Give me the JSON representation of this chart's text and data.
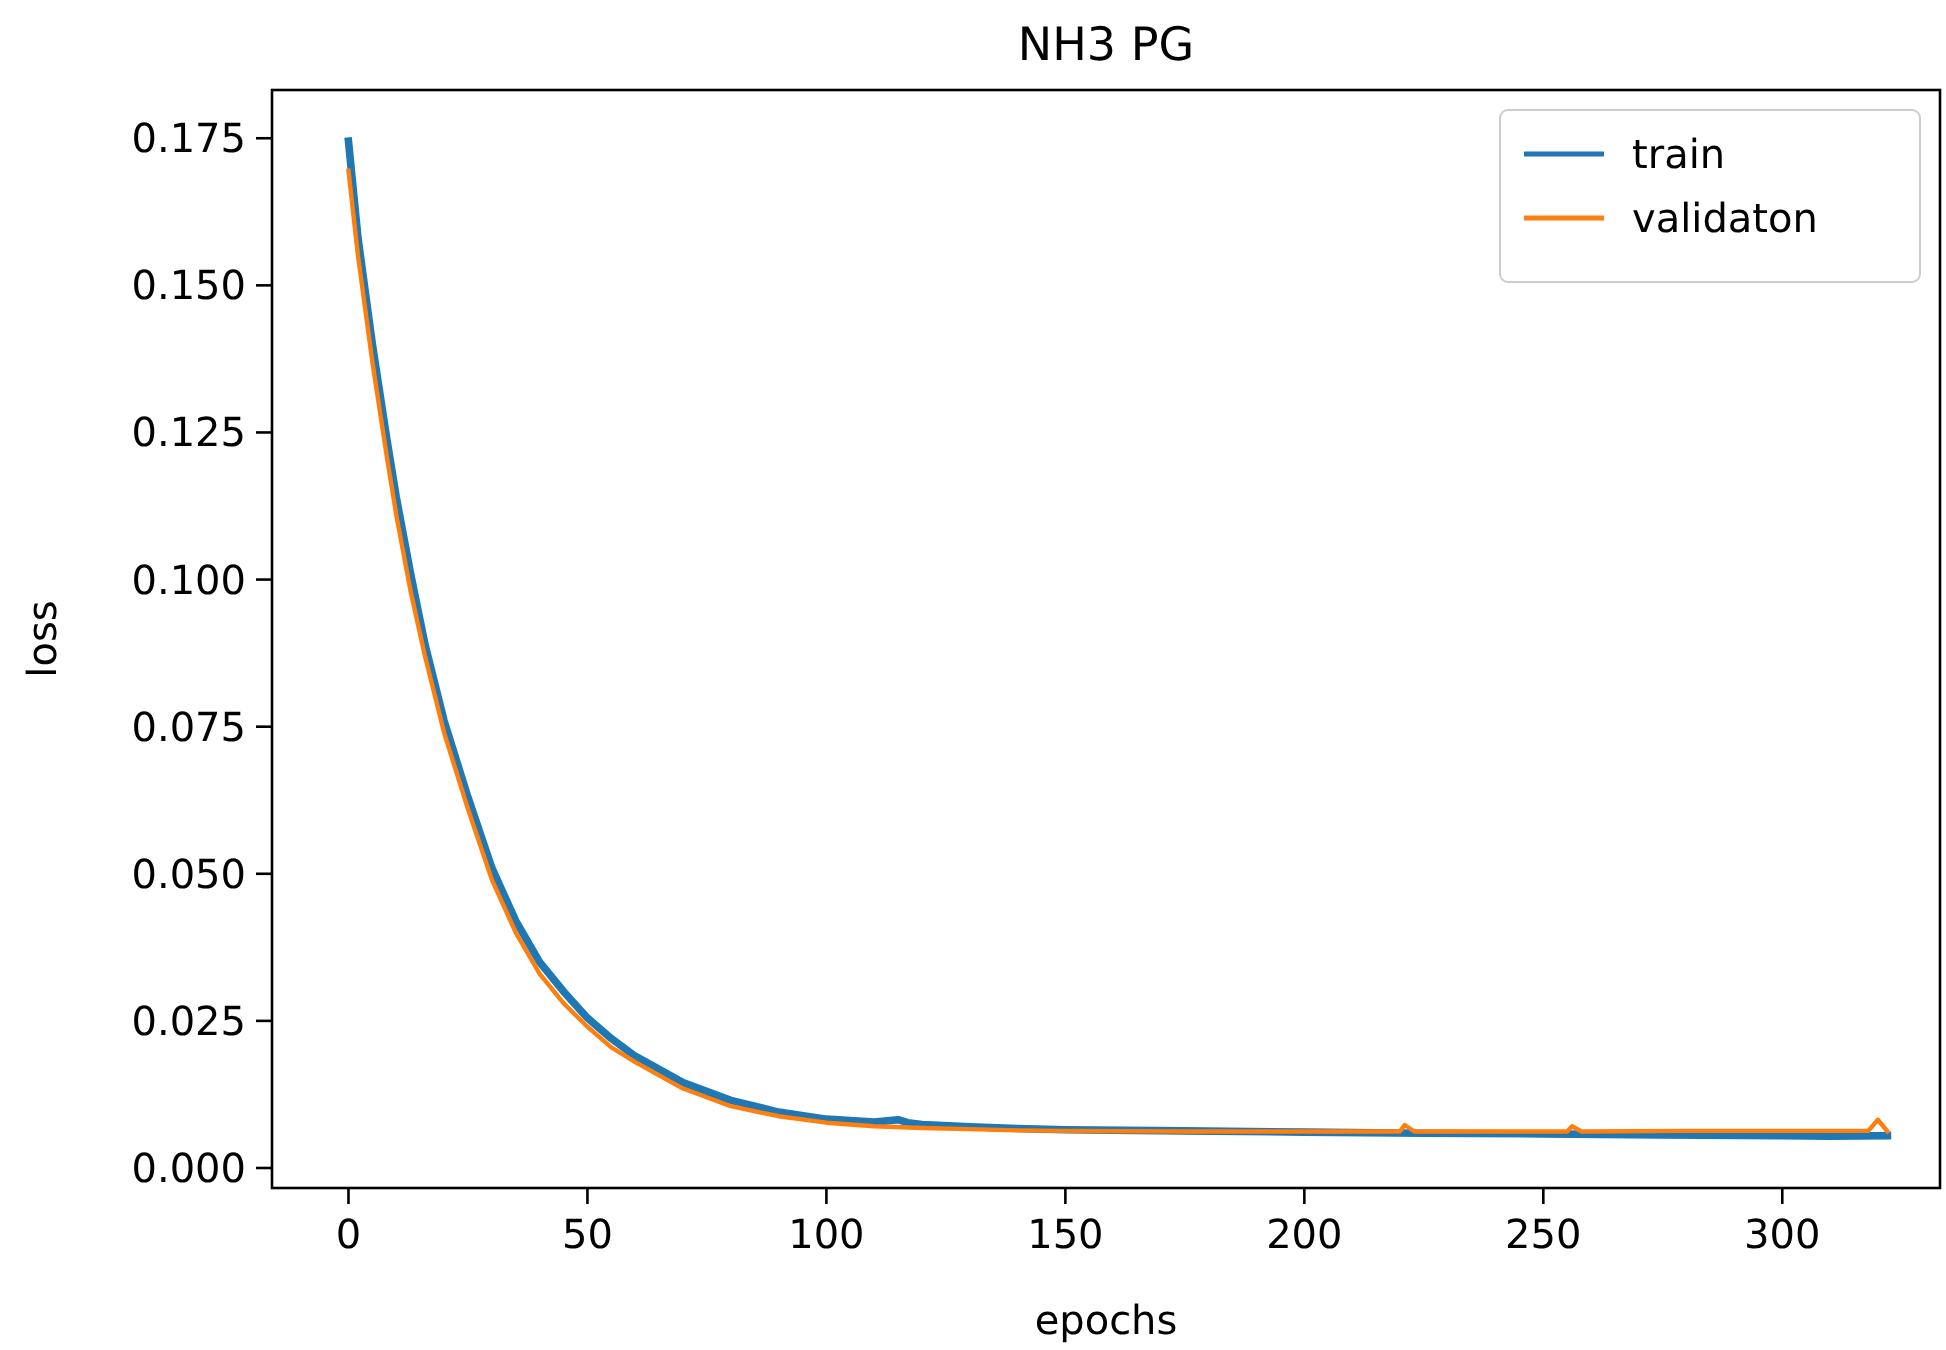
{
  "chart_data": {
    "type": "line",
    "title": "NH3 PG",
    "xlabel": "epochs",
    "ylabel": "loss",
    "xlim": [
      -16,
      333
    ],
    "xticks": [
      0,
      50,
      100,
      150,
      200,
      250,
      300
    ],
    "ylim": [
      -0.0034,
      0.1832
    ],
    "yticks": [
      {
        "value": 0,
        "label": "0.000"
      },
      {
        "value": 0.025,
        "label": "0.025"
      },
      {
        "value": 0.05,
        "label": "0.050"
      },
      {
        "value": 0.075,
        "label": "0.075"
      },
      {
        "value": 0.1,
        "label": "0.100"
      },
      {
        "value": 0.125,
        "label": "0.125"
      },
      {
        "value": 0.15,
        "label": "0.150"
      },
      {
        "value": 0.175,
        "label": "0.175"
      }
    ],
    "grid": false,
    "legend": "top right",
    "marker": "none",
    "line_style": "solid",
    "series": [
      {
        "name": "train",
        "color": "#1f77b4",
        "x": [
          0,
          2,
          5,
          8,
          10,
          13,
          16,
          20,
          25,
          30,
          35,
          40,
          45,
          50,
          55,
          60,
          70,
          80,
          90,
          100,
          110,
          115,
          117,
          120,
          130,
          140,
          150,
          175,
          200,
          225,
          250,
          275,
          300,
          310,
          322
        ],
        "values": [
          0.1745,
          0.158,
          0.14,
          0.124,
          0.114,
          0.101,
          0.089,
          0.076,
          0.063,
          0.051,
          0.042,
          0.035,
          0.03,
          0.0255,
          0.022,
          0.019,
          0.0145,
          0.0115,
          0.0095,
          0.0083,
          0.0078,
          0.0082,
          0.0077,
          0.0074,
          0.007,
          0.0067,
          0.0065,
          0.0063,
          0.0061,
          0.0059,
          0.0058,
          0.0056,
          0.0055,
          0.0054,
          0.0055
        ]
      },
      {
        "name": "validaton",
        "color": "#ff7f0e",
        "x": [
          0,
          2,
          5,
          8,
          10,
          13,
          16,
          20,
          25,
          30,
          35,
          40,
          45,
          50,
          55,
          60,
          70,
          80,
          90,
          100,
          110,
          120,
          130,
          140,
          150,
          175,
          200,
          220,
          221,
          223,
          240,
          255,
          256,
          258,
          280,
          300,
          318,
          320,
          322
        ],
        "values": [
          0.1695,
          0.155,
          0.137,
          0.121,
          0.111,
          0.098,
          0.087,
          0.074,
          0.061,
          0.049,
          0.04,
          0.033,
          0.028,
          0.024,
          0.0205,
          0.018,
          0.0135,
          0.0105,
          0.0088,
          0.0077,
          0.0071,
          0.0068,
          0.0066,
          0.0064,
          0.0063,
          0.0062,
          0.0062,
          0.0062,
          0.0073,
          0.0062,
          0.0062,
          0.0062,
          0.0071,
          0.0062,
          0.0063,
          0.0063,
          0.0063,
          0.0082,
          0.0062
        ]
      }
    ]
  }
}
